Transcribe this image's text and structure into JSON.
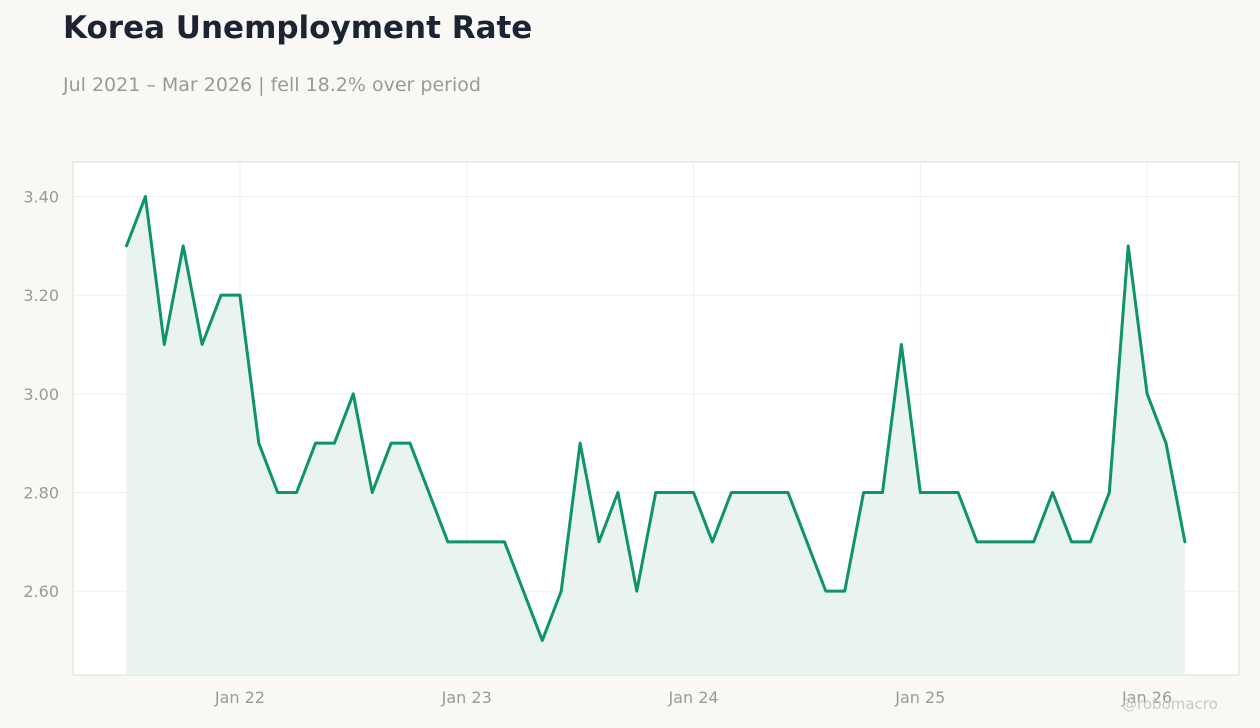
{
  "header": {
    "title": "Korea Unemployment Rate",
    "subtitle": "Jul 2021 – Mar 2026 | fell 18.2% over period"
  },
  "watermark": "@robomacro",
  "colors": {
    "line": "#0f9467",
    "fill": "#e9f4f0",
    "grid": "#efefef",
    "axis_text": "#9a9a94",
    "plot_border": "#dcdcd6",
    "background": "#f9f8f5"
  },
  "chart_data": {
    "type": "area",
    "title": "Korea Unemployment Rate",
    "subtitle": "Jul 2021 – Mar 2026 | fell 18.2% over period",
    "xlabel": "",
    "ylabel": "",
    "x_start": "2021-07",
    "x_end": "2026-03",
    "ylim": [
      2.43,
      3.47
    ],
    "y_ticks": [
      2.6,
      2.8,
      3.0,
      3.2,
      3.4
    ],
    "y_tick_labels": [
      "2.60",
      "2.80",
      "3.00",
      "3.20",
      "3.40"
    ],
    "x_tick_labels": [
      "Jan 22",
      "Jan 23",
      "Jan 24",
      "Jan 25",
      "Jan 26"
    ],
    "x_tick_dates": [
      "2022-01",
      "2023-01",
      "2024-01",
      "2025-01",
      "2026-01"
    ],
    "grid": true,
    "series": [
      {
        "x": [
          "2021-07",
          "2021-08",
          "2021-09",
          "2021-10",
          "2021-11",
          "2021-12",
          "2022-01",
          "2022-02",
          "2022-03",
          "2022-04",
          "2022-05",
          "2022-06",
          "2022-07",
          "2022-08",
          "2022-09",
          "2022-10",
          "2022-11",
          "2022-12",
          "2023-01",
          "2023-02",
          "2023-03",
          "2023-04",
          "2023-05",
          "2023-06",
          "2023-07",
          "2023-08",
          "2023-09",
          "2023-10",
          "2023-11",
          "2023-12",
          "2024-01",
          "2024-02",
          "2024-03",
          "2024-04",
          "2024-05",
          "2024-06",
          "2024-07",
          "2024-08",
          "2024-09",
          "2024-10",
          "2024-11",
          "2024-12",
          "2025-01",
          "2025-02",
          "2025-03",
          "2025-04",
          "2025-05",
          "2025-06",
          "2025-07",
          "2025-08",
          "2025-09",
          "2025-10",
          "2025-11",
          "2025-12",
          "2026-01",
          "2026-02",
          "2026-03"
        ],
        "values": [
          3.3,
          3.4,
          3.1,
          3.3,
          3.1,
          3.2,
          3.2,
          2.9,
          2.8,
          2.8,
          2.9,
          2.9,
          3.0,
          2.8,
          2.9,
          2.9,
          2.8,
          2.7,
          2.7,
          2.7,
          2.7,
          2.6,
          2.5,
          2.6,
          2.9,
          2.7,
          2.8,
          2.6,
          2.8,
          2.8,
          2.8,
          2.7,
          2.8,
          2.8,
          2.8,
          2.8,
          2.7,
          2.6,
          2.6,
          2.8,
          2.8,
          3.1,
          2.8,
          2.8,
          2.8,
          2.7,
          2.7,
          2.7,
          2.7,
          2.8,
          2.7,
          2.7,
          2.8,
          3.3,
          3.0,
          2.9,
          2.7
        ]
      }
    ]
  }
}
